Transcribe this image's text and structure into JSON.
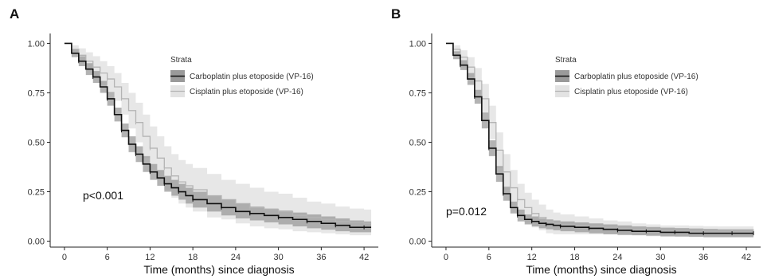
{
  "figure": {
    "panels": [
      "A",
      "B"
    ]
  },
  "chart_data": [
    {
      "type": "line",
      "panel": "A",
      "xlabel": "Time (months) since diagnosis",
      "ylabel": "",
      "xlim": [
        -2,
        44
      ],
      "ylim": [
        -0.03,
        1.05
      ],
      "xticks": [
        0,
        6,
        12,
        18,
        24,
        30,
        36,
        42
      ],
      "yticks": [
        0.0,
        0.25,
        0.5,
        0.75,
        1.0
      ],
      "ytick_labels": [
        "0.00",
        "0.25",
        "0.50",
        "0.75",
        "1.00"
      ],
      "grid": false,
      "legend": {
        "title": "Strata",
        "position": "top-right-inside",
        "entries": [
          "Carboplatin plus etoposide (VP-16)",
          "Cisplatin plus etoposide (VP-16)"
        ]
      },
      "annotation": "p<0.001",
      "series": [
        {
          "name": "Carboplatin plus etoposide (VP-16)",
          "color": "#111111",
          "band_color": "#9a9a9a",
          "x": [
            0,
            1,
            2,
            3,
            4,
            5,
            6,
            7,
            8,
            9,
            10,
            11,
            12,
            13,
            14,
            15,
            16,
            17,
            18,
            20,
            22,
            24,
            26,
            28,
            30,
            32,
            34,
            36,
            38,
            40,
            42,
            43
          ],
          "y": [
            1.0,
            0.95,
            0.91,
            0.87,
            0.83,
            0.78,
            0.72,
            0.64,
            0.56,
            0.49,
            0.44,
            0.39,
            0.35,
            0.32,
            0.29,
            0.27,
            0.25,
            0.23,
            0.21,
            0.19,
            0.17,
            0.15,
            0.14,
            0.13,
            0.12,
            0.11,
            0.1,
            0.09,
            0.08,
            0.07,
            0.07,
            0.07
          ],
          "ci_upper": [
            1.0,
            0.97,
            0.935,
            0.9,
            0.86,
            0.81,
            0.755,
            0.675,
            0.595,
            0.53,
            0.48,
            0.43,
            0.39,
            0.36,
            0.33,
            0.31,
            0.29,
            0.27,
            0.25,
            0.23,
            0.21,
            0.19,
            0.175,
            0.165,
            0.155,
            0.145,
            0.135,
            0.125,
            0.115,
            0.105,
            0.1,
            0.1
          ],
          "ci_lower": [
            1.0,
            0.93,
            0.885,
            0.84,
            0.8,
            0.75,
            0.685,
            0.605,
            0.525,
            0.45,
            0.4,
            0.35,
            0.31,
            0.28,
            0.25,
            0.23,
            0.21,
            0.19,
            0.17,
            0.15,
            0.13,
            0.115,
            0.105,
            0.095,
            0.085,
            0.075,
            0.065,
            0.058,
            0.05,
            0.045,
            0.045,
            0.045
          ]
        },
        {
          "name": "Cisplatin plus etoposide (VP-16)",
          "color": "#b4b4b4",
          "band_color": "#e3e3e3",
          "x": [
            0,
            1,
            2,
            3,
            4,
            5,
            6,
            7,
            8,
            9,
            10,
            11,
            12,
            13,
            14,
            15,
            16,
            17,
            18,
            20,
            22,
            24,
            26,
            28,
            30,
            32,
            34,
            36,
            38,
            40,
            42,
            43
          ],
          "y": [
            1.0,
            0.97,
            0.94,
            0.91,
            0.88,
            0.85,
            0.82,
            0.78,
            0.72,
            0.66,
            0.6,
            0.53,
            0.47,
            0.42,
            0.37,
            0.33,
            0.3,
            0.28,
            0.26,
            0.23,
            0.21,
            0.19,
            0.17,
            0.16,
            0.15,
            0.13,
            0.12,
            0.11,
            0.1,
            0.095,
            0.09,
            0.09
          ],
          "ci_upper": [
            1.0,
            0.99,
            0.975,
            0.955,
            0.935,
            0.91,
            0.885,
            0.85,
            0.8,
            0.75,
            0.7,
            0.64,
            0.58,
            0.53,
            0.48,
            0.44,
            0.41,
            0.39,
            0.37,
            0.34,
            0.31,
            0.29,
            0.27,
            0.25,
            0.24,
            0.22,
            0.2,
            0.19,
            0.175,
            0.165,
            0.16,
            0.16
          ],
          "ci_lower": [
            1.0,
            0.95,
            0.905,
            0.865,
            0.825,
            0.79,
            0.755,
            0.71,
            0.64,
            0.57,
            0.5,
            0.42,
            0.36,
            0.31,
            0.26,
            0.22,
            0.19,
            0.17,
            0.15,
            0.12,
            0.11,
            0.09,
            0.075,
            0.065,
            0.06,
            0.05,
            0.045,
            0.04,
            0.035,
            0.03,
            0.03,
            0.03
          ]
        }
      ]
    },
    {
      "type": "line",
      "panel": "B",
      "xlabel": "Time (months) since diagnosis",
      "ylabel": "",
      "xlim": [
        -2,
        44
      ],
      "ylim": [
        -0.03,
        1.05
      ],
      "xticks": [
        0,
        6,
        12,
        18,
        24,
        30,
        36,
        42
      ],
      "yticks": [
        0.0,
        0.25,
        0.5,
        0.75,
        1.0
      ],
      "ytick_labels": [
        "0.00",
        "0.25",
        "0.50",
        "0.75",
        "1.00"
      ],
      "grid": false,
      "legend": {
        "title": "Strata",
        "position": "top-right-inside",
        "entries": [
          "Carboplatin plus etoposide (VP-16)",
          "Cisplatin plus etoposide (VP-16)"
        ]
      },
      "annotation": "p=0.012",
      "series": [
        {
          "name": "Carboplatin plus etoposide (VP-16)",
          "color": "#111111",
          "band_color": "#9a9a9a",
          "x": [
            0,
            1,
            2,
            3,
            4,
            5,
            6,
            7,
            8,
            9,
            10,
            11,
            12,
            13,
            14,
            15,
            16,
            18,
            20,
            22,
            24,
            26,
            28,
            30,
            32,
            34,
            36,
            38,
            40,
            42,
            43
          ],
          "y": [
            1.0,
            0.94,
            0.89,
            0.82,
            0.73,
            0.61,
            0.47,
            0.34,
            0.24,
            0.17,
            0.13,
            0.11,
            0.1,
            0.09,
            0.085,
            0.08,
            0.075,
            0.07,
            0.065,
            0.06,
            0.055,
            0.05,
            0.05,
            0.045,
            0.045,
            0.04,
            0.04,
            0.04,
            0.04,
            0.04,
            0.04
          ],
          "ci_upper": [
            1.0,
            0.96,
            0.915,
            0.85,
            0.765,
            0.65,
            0.51,
            0.38,
            0.275,
            0.2,
            0.16,
            0.135,
            0.125,
            0.115,
            0.11,
            0.105,
            0.1,
            0.095,
            0.09,
            0.085,
            0.08,
            0.075,
            0.072,
            0.068,
            0.066,
            0.064,
            0.062,
            0.06,
            0.06,
            0.06,
            0.06
          ],
          "ci_lower": [
            1.0,
            0.92,
            0.865,
            0.79,
            0.695,
            0.57,
            0.43,
            0.3,
            0.205,
            0.14,
            0.1,
            0.085,
            0.075,
            0.065,
            0.06,
            0.055,
            0.05,
            0.045,
            0.04,
            0.035,
            0.032,
            0.03,
            0.028,
            0.025,
            0.024,
            0.022,
            0.02,
            0.02,
            0.02,
            0.02,
            0.02
          ]
        },
        {
          "name": "Cisplatin plus etoposide (VP-16)",
          "color": "#b4b4b4",
          "band_color": "#e3e3e3",
          "x": [
            0,
            1,
            2,
            3,
            4,
            5,
            6,
            7,
            8,
            9,
            10,
            11,
            12,
            13,
            14,
            15,
            16,
            18,
            20,
            22,
            24,
            26,
            28,
            30,
            32,
            34,
            36,
            38,
            40,
            42,
            43
          ],
          "y": [
            1.0,
            0.97,
            0.93,
            0.88,
            0.81,
            0.72,
            0.6,
            0.46,
            0.35,
            0.27,
            0.21,
            0.17,
            0.14,
            0.12,
            0.1,
            0.09,
            0.085,
            0.08,
            0.075,
            0.07,
            0.065,
            0.06,
            0.055,
            0.05,
            0.05,
            0.05,
            0.05,
            0.05,
            0.05,
            0.05,
            0.05
          ],
          "ci_upper": [
            1.0,
            0.99,
            0.965,
            0.93,
            0.875,
            0.795,
            0.685,
            0.55,
            0.44,
            0.36,
            0.29,
            0.245,
            0.21,
            0.185,
            0.16,
            0.145,
            0.135,
            0.125,
            0.115,
            0.105,
            0.1,
            0.09,
            0.085,
            0.08,
            0.08,
            0.078,
            0.076,
            0.075,
            0.075,
            0.075,
            0.075
          ],
          "ci_lower": [
            1.0,
            0.95,
            0.895,
            0.83,
            0.745,
            0.645,
            0.515,
            0.37,
            0.26,
            0.18,
            0.13,
            0.095,
            0.07,
            0.055,
            0.04,
            0.035,
            0.035,
            0.035,
            0.035,
            0.035,
            0.03,
            0.03,
            0.025,
            0.022,
            0.022,
            0.022,
            0.022,
            0.022,
            0.022,
            0.022,
            0.022
          ]
        }
      ]
    }
  ]
}
